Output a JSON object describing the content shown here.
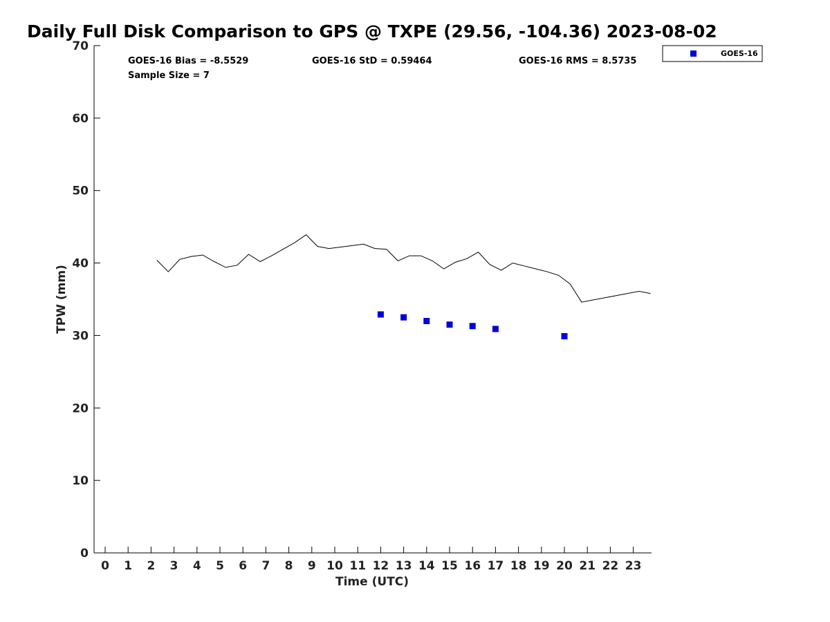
{
  "chart_data": {
    "type": "scatter",
    "title": "Daily Full Disk Comparison to GPS @ TXPE (29.56, -104.36) 2023-08-02",
    "xlabel": "Time (UTC)",
    "ylabel": "TPW (mm)",
    "xlim": [
      -0.5,
      23.75
    ],
    "ylim": [
      0,
      70
    ],
    "x_ticks": [
      0,
      1,
      2,
      3,
      4,
      5,
      6,
      7,
      8,
      9,
      10,
      11,
      12,
      13,
      14,
      15,
      16,
      17,
      18,
      19,
      20,
      21,
      22,
      23
    ],
    "y_ticks": [
      0,
      10,
      20,
      30,
      40,
      50,
      60,
      70
    ],
    "grid": false,
    "legend_position": "top-right, outside plot",
    "stats": {
      "bias": "GOES-16 Bias = -8.5529",
      "std": "GOES-16 StD = 0.59464",
      "rms": "GOES-16 RMS = 8.5735",
      "sample_size": "Sample Size = 7"
    },
    "gps_line": {
      "color": "#000000",
      "x": [
        2.25,
        2.75,
        3.25,
        3.75,
        4.25,
        4.75,
        5.25,
        5.75,
        6.25,
        6.75,
        7.25,
        7.75,
        8.25,
        8.75,
        9.25,
        9.75,
        10.25,
        10.75,
        11.25,
        11.75,
        12.25,
        12.75,
        13.25,
        13.75,
        14.25,
        14.75,
        15.25,
        15.75,
        16.25,
        16.75,
        17.25,
        17.75,
        18.25,
        18.75,
        19.25,
        19.75,
        20.25,
        20.75,
        21.25,
        21.75,
        22.25,
        22.75,
        23.25,
        23.75
      ],
      "y": [
        40.4,
        38.8,
        40.5,
        40.9,
        41.1,
        40.2,
        39.4,
        39.7,
        41.2,
        40.2,
        41.0,
        41.9,
        42.8,
        43.9,
        42.3,
        42.0,
        42.2,
        42.4,
        42.6,
        42.0,
        41.9,
        40.3,
        41.0,
        41.0,
        40.3,
        39.2,
        40.1,
        40.6,
        41.5,
        39.8,
        39.0,
        40.0,
        39.6,
        39.2,
        38.8,
        38.3,
        37.1,
        34.6,
        34.9,
        35.2,
        35.5,
        35.8,
        36.1,
        35.8
      ]
    },
    "series": [
      {
        "name": "GOES-16",
        "color": "#0000dd",
        "marker": "square",
        "x": [
          12,
          13,
          14,
          15,
          16,
          17,
          20
        ],
        "y": [
          32.9,
          32.5,
          32.0,
          31.5,
          31.3,
          30.9,
          29.9
        ]
      }
    ]
  }
}
